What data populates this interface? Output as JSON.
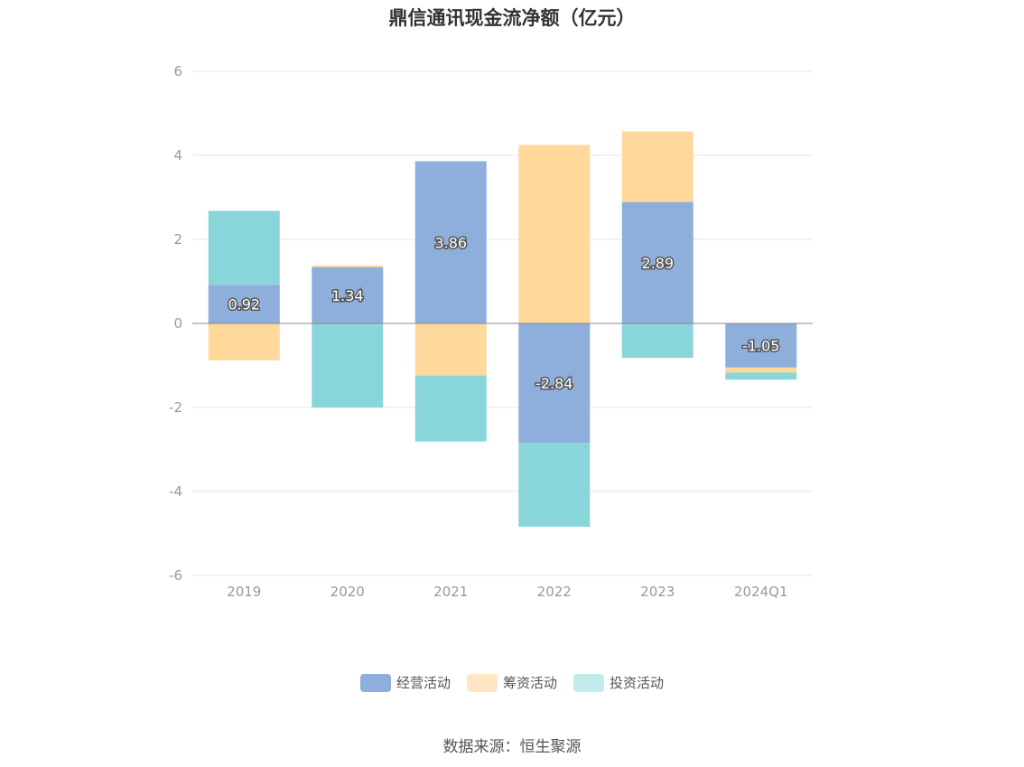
{
  "chart_data": {
    "type": "bar",
    "stacked": true,
    "title": "鼎信通讯现金流净额（亿元）",
    "categories": [
      "2019",
      "2020",
      "2021",
      "2022",
      "2023",
      "2024Q1"
    ],
    "series": [
      {
        "name": "经营活动",
        "color": "#8eaedb",
        "values": [
          0.92,
          1.34,
          3.86,
          -2.84,
          2.89,
          -1.05
        ],
        "show_labels": true
      },
      {
        "name": "筹资活动",
        "color": "#ffd99b",
        "values": [
          -0.88,
          0.04,
          -1.24,
          4.25,
          1.68,
          -0.12
        ]
      },
      {
        "name": "投资活动",
        "color": "#88d6da",
        "values": [
          1.76,
          -2.0,
          -1.57,
          -2.0,
          -0.82,
          -0.17
        ]
      }
    ],
    "ylim": [
      -6,
      6
    ],
    "yticks": [
      6,
      4,
      2,
      0,
      -2,
      -4,
      -6
    ],
    "grid": true,
    "legend_position": "bottom"
  },
  "legend": [
    {
      "label": "经营活动",
      "color": "#8eaedb"
    },
    {
      "label": "筹资活动",
      "color": "#ffe6c2"
    },
    {
      "label": "投资活动",
      "color": "#c2ebec"
    }
  ],
  "source_text": "数据来源：恒生聚源"
}
